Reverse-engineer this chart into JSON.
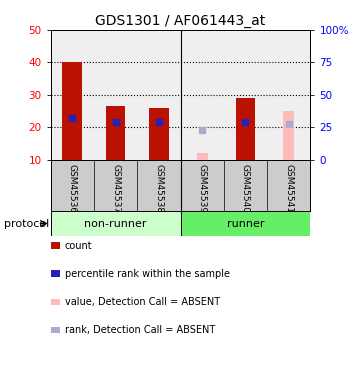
{
  "title": "GDS1301 / AF061443_at",
  "samples": [
    "GSM45536",
    "GSM45537",
    "GSM45538",
    "GSM45539",
    "GSM45540",
    "GSM45541"
  ],
  "bar_values": [
    40,
    26.5,
    26,
    null,
    29,
    null
  ],
  "bar_values_absent": [
    null,
    null,
    null,
    12,
    null,
    25
  ],
  "rank_values_present": [
    32,
    29,
    29,
    null,
    29,
    null
  ],
  "rank_values_absent": [
    null,
    null,
    null,
    23,
    null,
    27.5
  ],
  "ylim_left": [
    10,
    50
  ],
  "ylim_right": [
    0,
    100
  ],
  "yticks_left": [
    10,
    20,
    30,
    40,
    50
  ],
  "yticks_right": [
    0,
    25,
    50,
    75,
    100
  ],
  "yticklabels_right": [
    "0",
    "25",
    "50",
    "75",
    "100%"
  ],
  "color_bar_present": "#BB1100",
  "color_bar_absent": "#FFBBBB",
  "color_rank_present": "#2222BB",
  "color_rank_absent": "#AAAACC",
  "group_labels": [
    "non-runner",
    "runner"
  ],
  "group_colors_light": [
    "#CCFFCC",
    "#66EE66"
  ],
  "bar_width": 0.45,
  "absent_bar_width": 0.25,
  "legend_items": [
    {
      "color": "#BB1100",
      "label": "count"
    },
    {
      "color": "#2222BB",
      "label": "percentile rank within the sample"
    },
    {
      "color": "#FFBBBB",
      "label": "value, Detection Call = ABSENT"
    },
    {
      "color": "#AAAACC",
      "label": "rank, Detection Call = ABSENT"
    }
  ],
  "background_color": "#FFFFFF"
}
